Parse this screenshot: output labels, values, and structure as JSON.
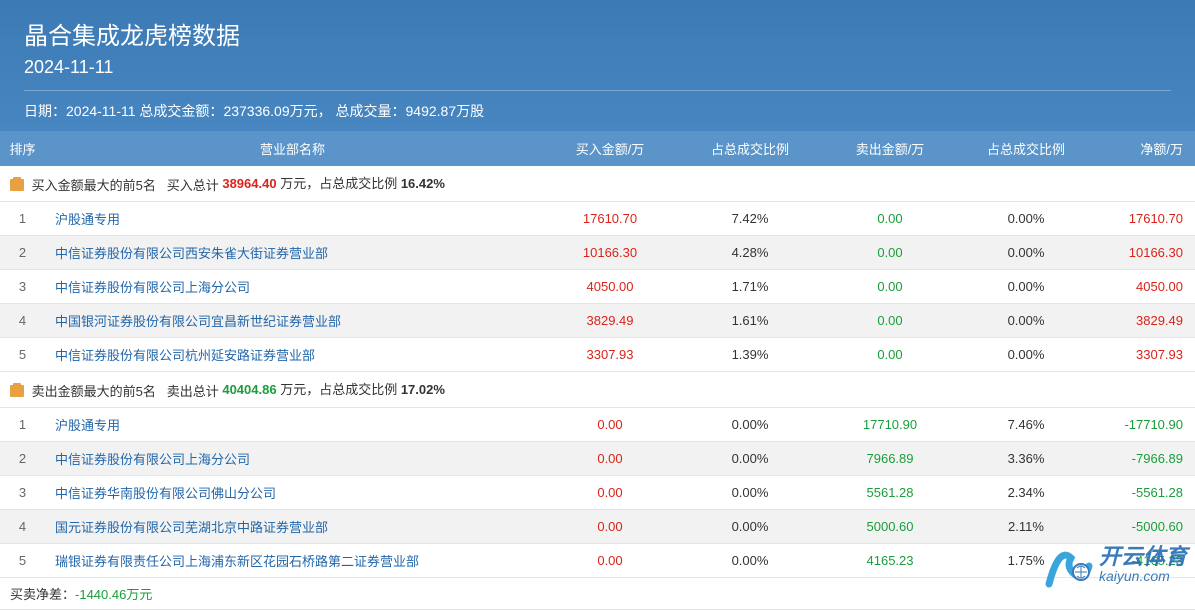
{
  "header": {
    "title": "晶合集成龙虎榜数据",
    "date": "2024-11-11",
    "summary_prefix": "日期：",
    "summary_date": "2024-11-11",
    "total_amount_label": " 总成交金额：",
    "total_amount": "237336.09万元，",
    "total_volume_label": " 总成交量：",
    "total_volume": "9492.87万股"
  },
  "columns": {
    "rank": "排序",
    "name": "营业部名称",
    "buy_amount": "买入金额/万",
    "buy_pct": "占总成交比例",
    "sell_amount": "卖出金额/万",
    "sell_pct": "占总成交比例",
    "net_amount": "净额/万"
  },
  "buy_section": {
    "title": "买入金额最大的前5名",
    "total_label": "买入总计",
    "total_amount": "38964.40",
    "unit": " 万元，",
    "pct_label": "占总成交比例 ",
    "pct": "16.42%"
  },
  "buy_rows": [
    {
      "rank": "1",
      "name": "沪股通专用",
      "buy": "17610.70",
      "buy_pct": "7.42%",
      "sell": "0.00",
      "sell_pct": "0.00%",
      "net": "17610.70",
      "net_class": "net-pos"
    },
    {
      "rank": "2",
      "name": "中信证券股份有限公司西安朱雀大街证券营业部",
      "buy": "10166.30",
      "buy_pct": "4.28%",
      "sell": "0.00",
      "sell_pct": "0.00%",
      "net": "10166.30",
      "net_class": "net-pos"
    },
    {
      "rank": "3",
      "name": "中信证券股份有限公司上海分公司",
      "buy": "4050.00",
      "buy_pct": "1.71%",
      "sell": "0.00",
      "sell_pct": "0.00%",
      "net": "4050.00",
      "net_class": "net-pos"
    },
    {
      "rank": "4",
      "name": "中国银河证券股份有限公司宜昌新世纪证券营业部",
      "buy": "3829.49",
      "buy_pct": "1.61%",
      "sell": "0.00",
      "sell_pct": "0.00%",
      "net": "3829.49",
      "net_class": "net-pos"
    },
    {
      "rank": "5",
      "name": "中信证券股份有限公司杭州延安路证券营业部",
      "buy": "3307.93",
      "buy_pct": "1.39%",
      "sell": "0.00",
      "sell_pct": "0.00%",
      "net": "3307.93",
      "net_class": "net-pos"
    }
  ],
  "sell_section": {
    "title": "卖出金额最大的前5名",
    "total_label": "卖出总计",
    "total_amount": "40404.86",
    "unit": " 万元，",
    "pct_label": "占总成交比例 ",
    "pct": "17.02%"
  },
  "sell_rows": [
    {
      "rank": "1",
      "name": "沪股通专用",
      "buy": "0.00",
      "buy_pct": "0.00%",
      "sell": "17710.90",
      "sell_pct": "7.46%",
      "net": "-17710.90",
      "net_class": "net-neg"
    },
    {
      "rank": "2",
      "name": "中信证券股份有限公司上海分公司",
      "buy": "0.00",
      "buy_pct": "0.00%",
      "sell": "7966.89",
      "sell_pct": "3.36%",
      "net": "-7966.89",
      "net_class": "net-neg"
    },
    {
      "rank": "3",
      "name": "中信证券华南股份有限公司佛山分公司",
      "buy": "0.00",
      "buy_pct": "0.00%",
      "sell": "5561.28",
      "sell_pct": "2.34%",
      "net": "-5561.28",
      "net_class": "net-neg"
    },
    {
      "rank": "4",
      "name": "国元证券股份有限公司芜湖北京中路证券营业部",
      "buy": "0.00",
      "buy_pct": "0.00%",
      "sell": "5000.60",
      "sell_pct": "2.11%",
      "net": "-5000.60",
      "net_class": "net-neg"
    },
    {
      "rank": "5",
      "name": "瑞银证券有限责任公司上海浦东新区花园石桥路第二证券营业部",
      "buy": "0.00",
      "buy_pct": "0.00%",
      "sell": "4165.23",
      "sell_pct": "1.75%",
      "net": "-4165.23",
      "net_class": "net-neg"
    }
  ],
  "footer": {
    "label": "买卖净差：",
    "value": "-1440.46万元"
  },
  "watermark": {
    "cn": "开云体育",
    "url": "kaiyun.com"
  },
  "colors": {
    "header_bg": "#4886c1",
    "thead_bg": "#5a94c9",
    "buy": "#d9241b",
    "sell": "#1a9e3b",
    "link": "#2266aa",
    "row_alt": "#f2f2f2",
    "border": "#e5e5e5"
  }
}
